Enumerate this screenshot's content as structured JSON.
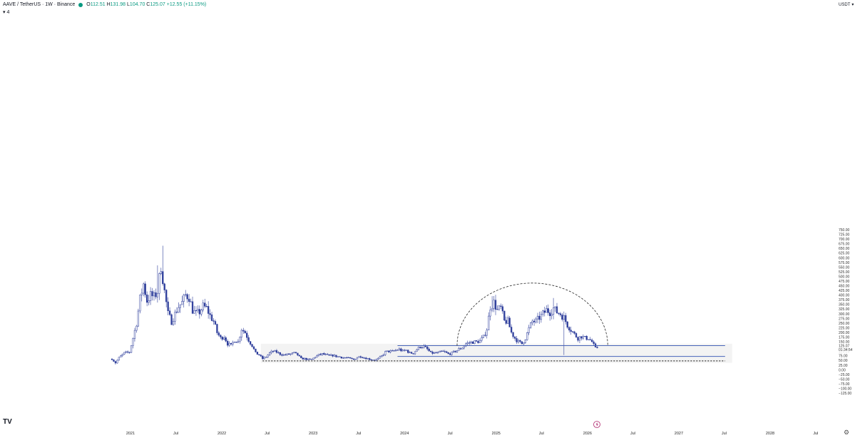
{
  "header": {
    "symbol": "AAVE / TetherUS · 1W · Binance",
    "status_color": "#089981",
    "o_label": "O",
    "o_value": "112.51",
    "h_label": "H",
    "h_value": "131.98",
    "l_label": "L",
    "l_value": "104.70",
    "c_label": "C",
    "c_value": "125.07",
    "change": "+12.55 (+11.15%)",
    "sub_count": "4"
  },
  "currency": "USDT",
  "logo": "TV",
  "price_label": {
    "price": "125.07",
    "countdown": "01:34:54"
  },
  "colors": {
    "candle": "#2f3f9c",
    "accent": "#1e53e5",
    "zone": "#f3f3f3",
    "level": "#4763b8",
    "arc": "#222222"
  },
  "chart_data": {
    "type": "candlestick",
    "title": "AAVE / TetherUS · 1W · Binance",
    "ylim": [
      -135,
      770
    ],
    "y_ticks": [
      -125,
      -100,
      -75,
      -50,
      -25,
      0,
      25,
      50,
      75,
      100,
      125,
      150,
      175,
      200,
      225,
      250,
      275,
      300,
      325,
      350,
      375,
      400,
      425,
      450,
      475,
      500,
      525,
      550,
      575,
      600,
      625,
      650,
      675,
      700,
      725,
      750
    ],
    "x_ticks": [
      "2021",
      "Jul",
      "2022",
      "Jul",
      "2023",
      "Jul",
      "2024",
      "Jul",
      "2025",
      "Jul",
      "2026",
      "Jul",
      "2027",
      "Jul",
      "2028",
      "Jul"
    ],
    "price_path": [
      [
        "2020-10-19",
        58
      ],
      [
        "2020-11-02",
        38
      ],
      [
        "2020-11-16",
        65
      ],
      [
        "2020-12-07",
        90
      ],
      [
        "2020-12-28",
        95
      ],
      [
        "2021-01-11",
        170
      ],
      [
        "2021-01-25",
        250
      ],
      [
        "2021-02-08",
        380
      ],
      [
        "2021-02-22",
        460
      ],
      [
        "2021-03-08",
        370
      ],
      [
        "2021-03-22",
        400
      ],
      [
        "2021-04-05",
        390
      ],
      [
        "2021-04-19",
        420
      ],
      [
        "2021-05-03",
        560
      ],
      [
        "2021-05-17",
        420
      ],
      [
        "2021-05-31",
        300
      ],
      [
        "2021-06-14",
        260
      ],
      [
        "2021-06-28",
        300
      ],
      [
        "2021-07-12",
        340
      ],
      [
        "2021-07-26",
        360
      ],
      [
        "2021-08-09",
        400
      ],
      [
        "2021-08-23",
        390
      ],
      [
        "2021-09-06",
        320
      ],
      [
        "2021-09-20",
        300
      ],
      [
        "2021-10-04",
        310
      ],
      [
        "2021-10-18",
        340
      ],
      [
        "2021-11-01",
        330
      ],
      [
        "2021-11-15",
        290
      ],
      [
        "2021-11-29",
        260
      ],
      [
        "2021-12-13",
        200
      ],
      [
        "2021-12-27",
        170
      ],
      [
        "2022-01-10",
        180
      ],
      [
        "2022-01-24",
        140
      ],
      [
        "2022-02-07",
        130
      ],
      [
        "2022-02-21",
        160
      ],
      [
        "2022-03-07",
        150
      ],
      [
        "2022-03-21",
        220
      ],
      [
        "2022-04-04",
        200
      ],
      [
        "2022-04-18",
        160
      ],
      [
        "2022-05-02",
        130
      ],
      [
        "2022-05-16",
        90
      ],
      [
        "2022-05-30",
        80
      ],
      [
        "2022-06-13",
        60
      ],
      [
        "2022-06-27",
        70
      ],
      [
        "2022-07-11",
        90
      ],
      [
        "2022-07-25",
        100
      ],
      [
        "2022-08-08",
        95
      ],
      [
        "2022-08-22",
        85
      ],
      [
        "2022-09-05",
        80
      ],
      [
        "2022-09-19",
        82
      ],
      [
        "2022-10-03",
        85
      ],
      [
        "2022-10-17",
        90
      ],
      [
        "2022-10-31",
        80
      ],
      [
        "2022-11-14",
        60
      ],
      [
        "2022-11-28",
        60
      ],
      [
        "2022-12-12",
        55
      ],
      [
        "2022-12-26",
        55
      ],
      [
        "2023-01-09",
        70
      ],
      [
        "2023-01-23",
        80
      ],
      [
        "2023-02-06",
        85
      ],
      [
        "2023-02-20",
        80
      ],
      [
        "2023-03-06",
        75
      ],
      [
        "2023-03-20",
        78
      ],
      [
        "2023-04-03",
        72
      ],
      [
        "2023-04-17",
        70
      ],
      [
        "2023-05-01",
        65
      ],
      [
        "2023-05-15",
        65
      ],
      [
        "2023-05-29",
        60
      ],
      [
        "2023-06-12",
        55
      ],
      [
        "2023-06-26",
        68
      ],
      [
        "2023-07-10",
        72
      ],
      [
        "2023-07-24",
        65
      ],
      [
        "2023-08-07",
        60
      ],
      [
        "2023-08-21",
        55
      ],
      [
        "2023-09-04",
        52
      ],
      [
        "2023-09-18",
        60
      ],
      [
        "2023-10-02",
        75
      ],
      [
        "2023-10-16",
        95
      ],
      [
        "2023-10-30",
        100
      ],
      [
        "2023-11-13",
        98
      ],
      [
        "2023-11-27",
        105
      ],
      [
        "2023-12-11",
        110
      ],
      [
        "2023-12-25",
        100
      ],
      [
        "2024-01-08",
        105
      ],
      [
        "2024-01-22",
        90
      ],
      [
        "2024-02-05",
        90
      ],
      [
        "2024-02-19",
        110
      ],
      [
        "2024-03-04",
        125
      ],
      [
        "2024-03-18",
        125
      ],
      [
        "2024-04-01",
        110
      ],
      [
        "2024-04-15",
        90
      ],
      [
        "2024-04-29",
        90
      ],
      [
        "2024-05-13",
        90
      ],
      [
        "2024-05-27",
        98
      ],
      [
        "2024-06-10",
        95
      ],
      [
        "2024-06-24",
        85
      ],
      [
        "2024-07-08",
        90
      ],
      [
        "2024-07-22",
        100
      ],
      [
        "2024-08-05",
        110
      ],
      [
        "2024-08-19",
        120
      ],
      [
        "2024-09-02",
        140
      ],
      [
        "2024-09-16",
        145
      ],
      [
        "2024-09-30",
        150
      ],
      [
        "2024-10-14",
        150
      ],
      [
        "2024-10-28",
        155
      ],
      [
        "2024-11-11",
        175
      ],
      [
        "2024-11-25",
        220
      ],
      [
        "2024-12-09",
        340
      ],
      [
        "2024-12-23",
        360
      ],
      [
        "2025-01-06",
        320
      ],
      [
        "2025-01-20",
        330
      ],
      [
        "2025-02-03",
        260
      ],
      [
        "2025-02-17",
        260
      ],
      [
        "2025-03-03",
        200
      ],
      [
        "2025-03-17",
        170
      ],
      [
        "2025-03-31",
        150
      ],
      [
        "2025-04-14",
        140
      ],
      [
        "2025-04-28",
        170
      ],
      [
        "2025-05-12",
        220
      ],
      [
        "2025-05-26",
        260
      ],
      [
        "2025-06-09",
        260
      ],
      [
        "2025-06-23",
        280
      ],
      [
        "2025-07-07",
        300
      ],
      [
        "2025-07-21",
        320
      ],
      [
        "2025-08-04",
        310
      ],
      [
        "2025-08-18",
        330
      ],
      [
        "2025-09-01",
        310
      ],
      [
        "2025-09-15",
        300
      ],
      [
        "2025-09-29",
        280
      ],
      [
        "2025-10-13",
        240
      ],
      [
        "2025-10-27",
        215
      ],
      [
        "2025-11-10",
        190
      ],
      [
        "2025-11-24",
        170
      ],
      [
        "2025-12-08",
        180
      ],
      [
        "2025-12-22",
        170
      ],
      [
        "2026-01-05",
        170
      ],
      [
        "2026-01-19",
        150
      ],
      [
        "2026-02-02",
        115
      ],
      [
        "2026-02-16",
        125
      ]
    ],
    "levels": [
      {
        "label": "resistance",
        "y": 130,
        "from": "2023-12-04",
        "to": "2027-07-05"
      },
      {
        "label": "support",
        "y": 72,
        "from": "2023-12-04",
        "to": "2027-07-05"
      }
    ],
    "range_box": {
      "y": [
        38,
        140
      ],
      "from": "2022-06-06",
      "to": "2027-08-02"
    },
    "dashed_lines": [
      {
        "y": 50,
        "from": "2022-06-13",
        "to": "2027-07-05"
      },
      {
        "y": 47,
        "from": "2022-06-13",
        "to": "2027-07-05"
      }
    ],
    "arc": {
      "from": "2024-07-29",
      "to": "2026-03-23",
      "base": 130,
      "peak": 465
    },
    "grid": false,
    "legend": "none"
  }
}
